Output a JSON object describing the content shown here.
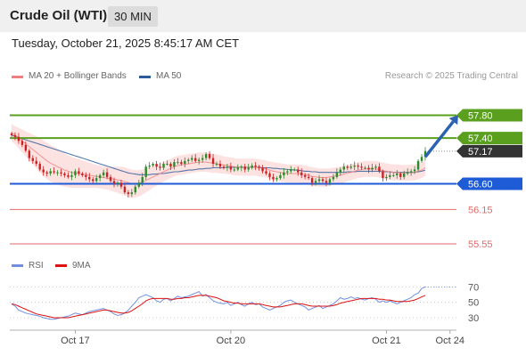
{
  "header": {
    "instrument": "Crude Oil (WTI)",
    "timeframe": "30 MIN"
  },
  "timestamp": "Tuesday, October 21, 2025 8:45:17 AM CET",
  "copyright": "Research © 2025 Trading Central",
  "colors": {
    "ma20": "#f08080",
    "bollinger": "#fde2e2",
    "ma50": "#2c5b9a",
    "resistance": "#5aa01e",
    "pivot": "#1e5bd6",
    "support": "#e26a6a",
    "rsi": "#6f8fe0",
    "rsi_ma": "#dd1111",
    "candle_up": "#2b8a2b",
    "candle_down": "#cc2222",
    "arrow": "#2d62b0"
  },
  "chart_data": [
    {
      "type": "candlestick",
      "legend": [
        {
          "label": "MA 20 + Bollinger Bands",
          "color": "#f08080",
          "icon": "line-swatch"
        },
        {
          "label": "MA 50",
          "color": "#2c5b9a",
          "icon": "line-swatch"
        }
      ],
      "ylim": [
        55.3,
        58.15
      ],
      "x_ticks": [
        {
          "label": "Oct 17",
          "index": 18
        },
        {
          "label": "Oct 20",
          "index": 62
        },
        {
          "label": "Oct 21",
          "index": 106
        },
        {
          "label": "Oct 24",
          "index": 124
        }
      ],
      "closes": [
        57.45,
        57.42,
        57.35,
        57.28,
        57.18,
        57.05,
        57.0,
        56.95,
        56.85,
        56.8,
        56.78,
        56.82,
        56.8,
        56.8,
        56.78,
        56.75,
        56.72,
        56.75,
        56.82,
        56.78,
        56.75,
        56.72,
        56.68,
        56.65,
        56.7,
        56.75,
        56.8,
        56.72,
        56.65,
        56.6,
        56.62,
        56.55,
        56.45,
        56.42,
        56.45,
        56.55,
        56.62,
        56.72,
        56.9,
        56.92,
        56.95,
        56.9,
        56.88,
        56.95,
        56.95,
        56.9,
        56.98,
        56.98,
        56.95,
        57.0,
        57.02,
        57.05,
        57.0,
        57.02,
        57.05,
        57.12,
        57.05,
        56.95,
        56.95,
        56.9,
        56.88,
        56.9,
        56.85,
        56.85,
        56.88,
        56.9,
        56.85,
        56.88,
        56.92,
        56.9,
        56.88,
        56.82,
        56.78,
        56.72,
        56.68,
        56.7,
        56.75,
        56.8,
        56.82,
        56.85,
        56.85,
        56.8,
        56.75,
        56.72,
        56.7,
        56.62,
        56.65,
        56.68,
        56.65,
        56.62,
        56.68,
        56.72,
        56.8,
        56.85,
        56.9,
        56.88,
        56.9,
        56.92,
        56.9,
        56.88,
        56.88,
        56.85,
        56.88,
        56.9,
        56.82,
        56.7,
        56.72,
        56.75,
        56.75,
        56.78,
        56.72,
        56.78,
        56.8,
        56.82,
        56.85,
        57.0,
        57.07,
        57.17
      ],
      "ma20": [
        57.5,
        57.45,
        57.4,
        57.35,
        57.3,
        57.25,
        57.2,
        57.15,
        57.1,
        57.05,
        57.0,
        56.96,
        56.93,
        56.9,
        56.87,
        56.84,
        56.82,
        56.8,
        56.79,
        56.78,
        56.77,
        56.76,
        56.75,
        56.74,
        56.73,
        56.72,
        56.71,
        56.7,
        56.69,
        56.68,
        56.67,
        56.66,
        56.64,
        56.62,
        56.6,
        56.6,
        56.61,
        56.63,
        56.66,
        56.69,
        56.72,
        56.75,
        56.78,
        56.81,
        56.84,
        56.87,
        56.9,
        56.92,
        56.93,
        56.94,
        56.95,
        56.96,
        56.97,
        56.98,
        56.98,
        56.98,
        56.97,
        56.96,
        56.95,
        56.94,
        56.93,
        56.92,
        56.91,
        56.9,
        56.89,
        56.89,
        56.89,
        56.89,
        56.89,
        56.89,
        56.88,
        56.87,
        56.86,
        56.84,
        56.82,
        56.81,
        56.8,
        56.79,
        56.78,
        56.78,
        56.78,
        56.78,
        56.77,
        56.76,
        56.75,
        56.73,
        56.72,
        56.71,
        56.71,
        56.71,
        56.72,
        56.73,
        56.74,
        56.75,
        56.77,
        56.79,
        56.8,
        56.82,
        56.84,
        56.85,
        56.86,
        56.86,
        56.86,
        56.86,
        56.85,
        56.83,
        56.82,
        56.81,
        56.8,
        56.8,
        56.79,
        56.79,
        56.79,
        56.8,
        56.8,
        56.82,
        56.84,
        56.88
      ],
      "ma50": [
        57.45,
        57.43,
        57.41,
        57.39,
        57.37,
        57.35,
        57.33,
        57.31,
        57.29,
        57.27,
        57.25,
        57.23,
        57.21,
        57.19,
        57.17,
        57.15,
        57.13,
        57.11,
        57.09,
        57.07,
        57.05,
        57.03,
        57.01,
        56.99,
        56.97,
        56.95,
        56.93,
        56.91,
        56.89,
        56.87,
        56.85,
        56.83,
        56.81,
        56.79,
        56.78,
        56.77,
        56.76,
        56.76,
        56.76,
        56.76,
        56.77,
        56.77,
        56.78,
        56.78,
        56.79,
        56.8,
        56.81,
        56.81,
        56.82,
        56.83,
        56.84,
        56.84,
        56.85,
        56.86,
        56.86,
        56.87,
        56.87,
        56.88,
        56.88,
        56.88,
        56.88,
        56.89,
        56.89,
        56.89,
        56.89,
        56.89,
        56.89,
        56.89,
        56.89,
        56.89,
        56.89,
        56.88,
        56.88,
        56.88,
        56.87,
        56.87,
        56.86,
        56.86,
        56.85,
        56.85,
        56.84,
        56.84,
        56.83,
        56.82,
        56.82,
        56.81,
        56.81,
        56.8,
        56.8,
        56.8,
        56.8,
        56.8,
        56.8,
        56.8,
        56.8,
        56.81,
        56.81,
        56.81,
        56.82,
        56.82,
        56.82,
        56.82,
        56.82,
        56.82,
        56.82,
        56.81,
        56.81,
        56.81,
        56.8,
        56.8,
        56.8,
        56.8,
        56.8,
        56.8,
        56.8,
        56.81,
        56.82,
        56.84
      ],
      "band_width": [
        0.15,
        0.16,
        0.18,
        0.2,
        0.22,
        0.24,
        0.26,
        0.28,
        0.3,
        0.31,
        0.32,
        0.32,
        0.32,
        0.31,
        0.3,
        0.29,
        0.28,
        0.27,
        0.26,
        0.25,
        0.24,
        0.23,
        0.22,
        0.21,
        0.2,
        0.2,
        0.2,
        0.2,
        0.21,
        0.22,
        0.23,
        0.24,
        0.25,
        0.25,
        0.25,
        0.24,
        0.23,
        0.22,
        0.21,
        0.2,
        0.19,
        0.18,
        0.17,
        0.17,
        0.17,
        0.17,
        0.17,
        0.17,
        0.17,
        0.17,
        0.17,
        0.17,
        0.17,
        0.17,
        0.17,
        0.17,
        0.17,
        0.17,
        0.16,
        0.16,
        0.15,
        0.15,
        0.15,
        0.15,
        0.15,
        0.15,
        0.15,
        0.15,
        0.15,
        0.15,
        0.15,
        0.15,
        0.15,
        0.15,
        0.16,
        0.16,
        0.16,
        0.16,
        0.16,
        0.16,
        0.16,
        0.16,
        0.16,
        0.16,
        0.16,
        0.16,
        0.16,
        0.16,
        0.16,
        0.16,
        0.15,
        0.15,
        0.15,
        0.15,
        0.15,
        0.14,
        0.14,
        0.14,
        0.14,
        0.14,
        0.14,
        0.14,
        0.14,
        0.14,
        0.14,
        0.14,
        0.14,
        0.14,
        0.14,
        0.14,
        0.14,
        0.14,
        0.14,
        0.14,
        0.14,
        0.14,
        0.14,
        0.14
      ],
      "levels": [
        {
          "value": 57.8,
          "label": "57.80",
          "kind": "resistance"
        },
        {
          "value": 57.4,
          "label": "57.40",
          "kind": "resistance"
        },
        {
          "value": 57.17,
          "label": "57.17",
          "kind": "last-price"
        },
        {
          "value": 56.6,
          "label": "56.60",
          "kind": "pivot"
        },
        {
          "value": 56.15,
          "label": "56.15",
          "kind": "support"
        },
        {
          "value": 55.55,
          "label": "55.55",
          "kind": "support"
        }
      ],
      "projection_arrow": {
        "from_index": 117,
        "from_value": 57.07,
        "to_value": 57.8
      }
    },
    {
      "type": "line",
      "legend": [
        {
          "label": "RSI",
          "color": "#6f8fe0",
          "icon": "line-swatch"
        },
        {
          "label": "9MA",
          "color": "#dd1111",
          "icon": "line-swatch"
        }
      ],
      "ylim": [
        15,
        82
      ],
      "y_ticks": [
        {
          "value": 70,
          "label": "70"
        },
        {
          "value": 50,
          "label": "50"
        },
        {
          "value": 30,
          "label": "30"
        }
      ],
      "series": [
        {
          "name": "RSI",
          "values": [
            48,
            45,
            40,
            38,
            36,
            35,
            34,
            33,
            32,
            30,
            29,
            28,
            28,
            29,
            30,
            31,
            32,
            34,
            36,
            35,
            34,
            36,
            38,
            39,
            40,
            41,
            42,
            40,
            38,
            35,
            33,
            34,
            36,
            40,
            45,
            50,
            56,
            58,
            60,
            58,
            56,
            52,
            50,
            54,
            55,
            52,
            55,
            58,
            56,
            57,
            58,
            60,
            62,
            64,
            58,
            60,
            56,
            52,
            50,
            49,
            48,
            50,
            46,
            48,
            50,
            47,
            45,
            48,
            50,
            47,
            48,
            44,
            42,
            40,
            42,
            44,
            46,
            50,
            52,
            53,
            50,
            48,
            46,
            44,
            40,
            42,
            44,
            46,
            42,
            44,
            46,
            48,
            52,
            56,
            54,
            55,
            57,
            55,
            56,
            54,
            53,
            55,
            56,
            54,
            50,
            52,
            50,
            52,
            50,
            48,
            50,
            52,
            54,
            56,
            60,
            62,
            68,
            70
          ]
        },
        {
          "name": "9MA",
          "values": [
            48,
            47,
            45,
            43,
            41,
            39,
            37,
            35,
            34,
            33,
            32,
            31,
            30,
            30,
            30,
            30,
            30,
            31,
            32,
            33,
            34,
            35,
            36,
            37,
            38,
            39,
            40,
            40,
            39,
            38,
            37,
            36,
            36,
            37,
            39,
            42,
            45,
            48,
            52,
            54,
            55,
            55,
            55,
            55,
            55,
            54,
            54,
            55,
            55,
            56,
            56,
            57,
            58,
            59,
            59,
            59,
            58,
            57,
            56,
            54,
            52,
            51,
            50,
            49,
            49,
            48,
            48,
            48,
            48,
            48,
            48,
            47,
            46,
            45,
            44,
            44,
            44,
            45,
            46,
            47,
            48,
            48,
            48,
            47,
            46,
            45,
            45,
            45,
            45,
            45,
            45,
            46,
            47,
            49,
            50,
            51,
            52,
            53,
            54,
            55,
            55,
            55,
            55,
            55,
            54,
            54,
            53,
            53,
            52,
            51,
            51,
            51,
            51,
            52,
            53,
            55,
            57,
            59
          ]
        }
      ]
    }
  ]
}
